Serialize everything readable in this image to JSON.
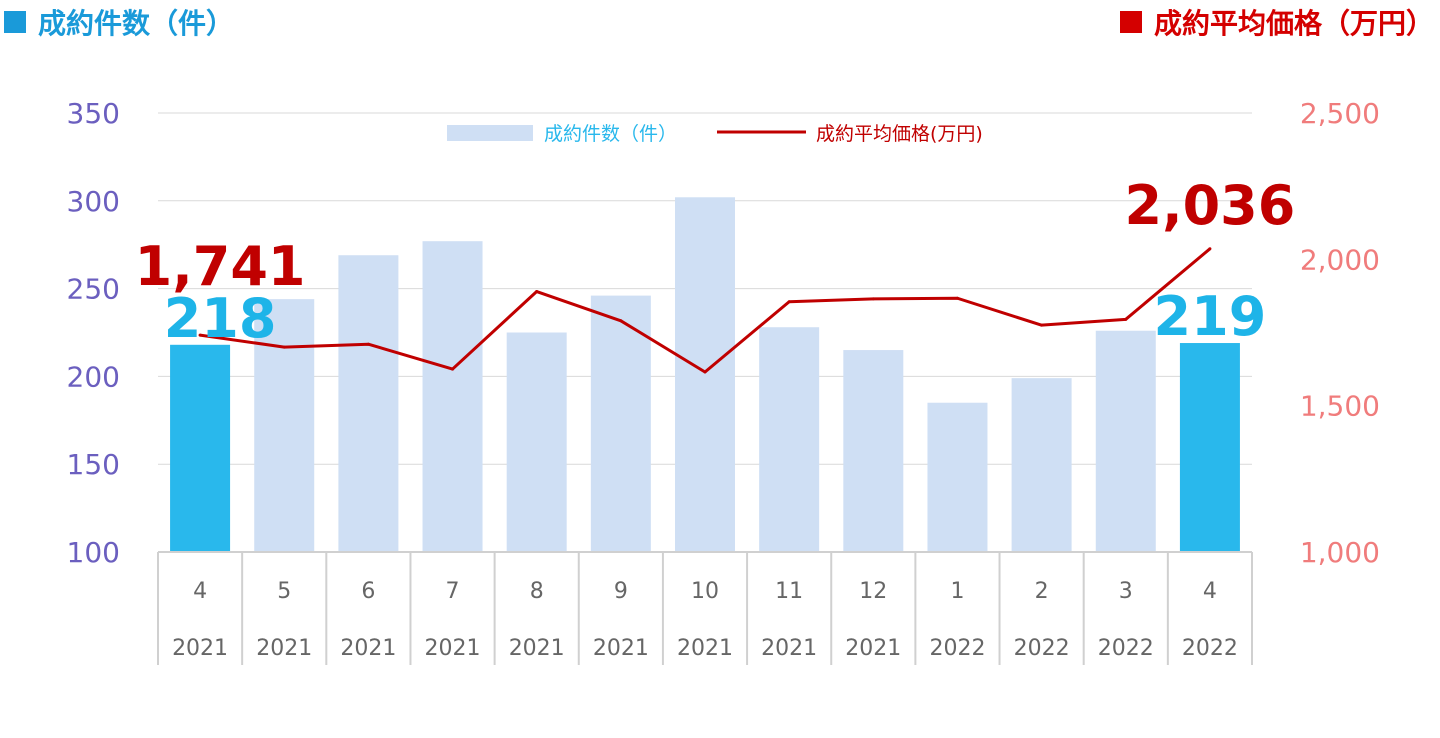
{
  "header": {
    "left_title": "成約件数（件）",
    "right_title": "成約平均価格（万円）"
  },
  "colors": {
    "bar": "#cfdff4",
    "bar_highlight": "#29b8ec",
    "line": "#c00000",
    "left_axis": "#6b5fbf",
    "right_axis": "#f07c7c"
  },
  "chart_data": {
    "type": "bar",
    "categories": [
      {
        "month": "4",
        "year": "2021"
      },
      {
        "month": "5",
        "year": "2021"
      },
      {
        "month": "6",
        "year": "2021"
      },
      {
        "month": "7",
        "year": "2021"
      },
      {
        "month": "8",
        "year": "2021"
      },
      {
        "month": "9",
        "year": "2021"
      },
      {
        "month": "10",
        "year": "2021"
      },
      {
        "month": "11",
        "year": "2021"
      },
      {
        "month": "12",
        "year": "2021"
      },
      {
        "month": "1",
        "year": "2022"
      },
      {
        "month": "2",
        "year": "2022"
      },
      {
        "month": "3",
        "year": "2022"
      },
      {
        "month": "4",
        "year": "2022"
      }
    ],
    "series": [
      {
        "name": "成約件数（件）",
        "type": "bar",
        "axis": "left",
        "values": [
          218,
          244,
          269,
          277,
          225,
          246,
          302,
          228,
          215,
          185,
          199,
          226,
          219
        ],
        "highlight_indices": [
          0,
          12
        ]
      },
      {
        "name": "成約平均価格(万円)",
        "type": "line",
        "axis": "right",
        "values": [
          1741,
          1700,
          1710,
          1625,
          1890,
          1790,
          1615,
          1855,
          1865,
          1867,
          1775,
          1795,
          2036
        ]
      }
    ],
    "left_axis": {
      "min": 100,
      "max": 350,
      "ticks": [
        "100",
        "150",
        "200",
        "250",
        "300",
        "350"
      ]
    },
    "right_axis": {
      "min": 1000,
      "max": 2500,
      "ticks": [
        "1,000",
        "1,500",
        "2,000",
        "2,500"
      ]
    },
    "grid": true,
    "legend": "top-center",
    "annotations": [
      {
        "text": "1,741",
        "series": 1,
        "index": 0
      },
      {
        "text": "218",
        "series": 0,
        "index": 0
      },
      {
        "text": "2,036",
        "series": 1,
        "index": 12
      },
      {
        "text": "219",
        "series": 0,
        "index": 12
      }
    ]
  }
}
